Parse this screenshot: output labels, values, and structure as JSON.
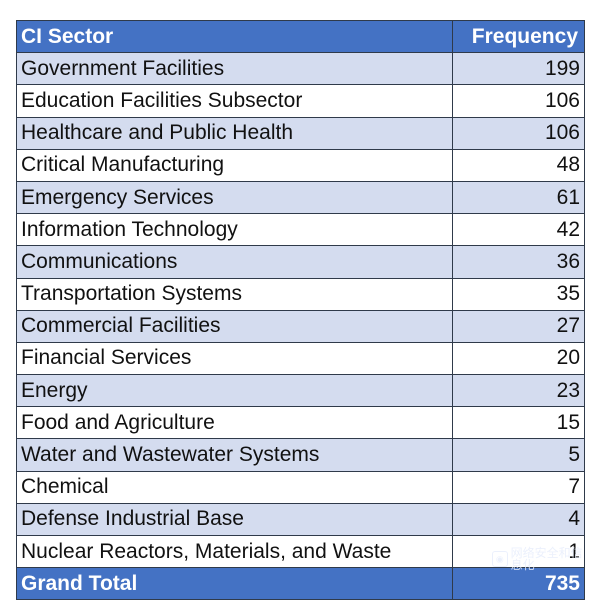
{
  "table": {
    "headers": [
      "CI Sector",
      "Frequency"
    ],
    "rows": [
      {
        "sector": "Government Facilities",
        "frequency": "199"
      },
      {
        "sector": "Education Facilities Subsector",
        "frequency": "106"
      },
      {
        "sector": "Healthcare and Public Health",
        "frequency": "106"
      },
      {
        "sector": "Critical Manufacturing",
        "frequency": "48"
      },
      {
        "sector": "Emergency Services",
        "frequency": "61"
      },
      {
        "sector": "Information Technology",
        "frequency": "42"
      },
      {
        "sector": "Communications",
        "frequency": "36"
      },
      {
        "sector": "Transportation Systems",
        "frequency": "35"
      },
      {
        "sector": "Commercial Facilities",
        "frequency": "27"
      },
      {
        "sector": "Financial Services",
        "frequency": "20"
      },
      {
        "sector": "Energy",
        "frequency": "23"
      },
      {
        "sector": "Food and Agriculture",
        "frequency": "15"
      },
      {
        "sector": "Water and Wastewater Systems",
        "frequency": "5"
      },
      {
        "sector": "Chemical",
        "frequency": "7"
      },
      {
        "sector": "Defense Industrial Base",
        "frequency": "4"
      },
      {
        "sector": "Nuclear Reactors, Materials, and Waste",
        "frequency": "1"
      }
    ],
    "total": {
      "label": "Grand Total",
      "value": "735"
    }
  },
  "colors": {
    "header": "#4472c4",
    "band": "#d4dcef",
    "border": "#2f3a4a"
  },
  "watermark": {
    "text": "网络安全和信息化"
  }
}
